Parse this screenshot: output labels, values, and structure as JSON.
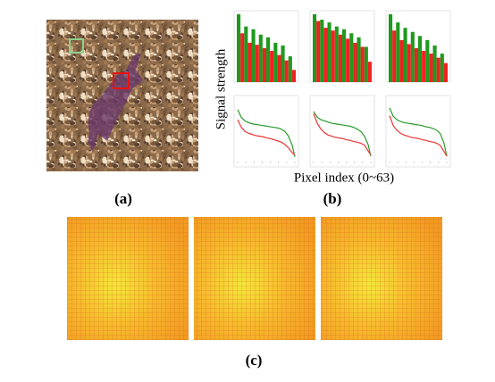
{
  "figure": {
    "labels": [
      "(a)",
      "(b)",
      "(c)"
    ],
    "y_label": "Signal strength",
    "x_label": "Pixel index (0~63)"
  },
  "chart_data": [
    {
      "type": "bar",
      "categories": [
        null,
        null,
        null,
        null,
        null,
        null,
        null,
        null
      ],
      "ylim": [
        0,
        100
      ],
      "series": [
        {
          "color": "#1f9a1f",
          "values": [
            100,
            82,
            78,
            70,
            66,
            58,
            54,
            38
          ]
        },
        {
          "color": "#ee2222",
          "values": [
            72,
            58,
            55,
            50,
            46,
            40,
            32,
            18
          ]
        }
      ]
    },
    {
      "type": "bar",
      "categories": [
        null,
        null,
        null,
        null,
        null,
        null,
        null,
        null
      ],
      "ylim": [
        0,
        100
      ],
      "series": [
        {
          "color": "#1f9a1f",
          "values": [
            100,
            92,
            88,
            82,
            78,
            72,
            66,
            52
          ]
        },
        {
          "color": "#ee2222",
          "values": [
            90,
            80,
            76,
            70,
            64,
            58,
            52,
            30
          ]
        }
      ]
    },
    {
      "type": "bar",
      "categories": [
        null,
        null,
        null,
        null,
        null,
        null,
        null,
        null
      ],
      "ylim": [
        0,
        100
      ],
      "series": [
        {
          "color": "#1f9a1f",
          "values": [
            100,
            88,
            80,
            74,
            68,
            62,
            54,
            42
          ]
        },
        {
          "color": "#ee2222",
          "values": [
            76,
            62,
            56,
            50,
            46,
            42,
            36,
            28
          ]
        }
      ]
    },
    {
      "type": "line",
      "x": [
        0,
        4,
        8,
        12,
        16,
        20,
        24,
        28,
        32,
        36,
        40,
        44,
        48,
        52,
        56,
        60,
        63
      ],
      "xlim": [
        0,
        63
      ],
      "ylim": [
        0,
        100
      ],
      "series": [
        {
          "color": "#2a9a2a",
          "values": [
            85,
            72,
            66,
            63,
            61,
            60,
            59,
            58,
            57,
            56,
            55,
            54,
            52,
            48,
            40,
            25,
            5
          ]
        },
        {
          "color": "#ee3333",
          "values": [
            68,
            55,
            48,
            45,
            43,
            41,
            40,
            39,
            37,
            36,
            34,
            32,
            30,
            26,
            20,
            12,
            8
          ]
        }
      ]
    },
    {
      "type": "line",
      "x": [
        0,
        4,
        8,
        12,
        16,
        20,
        24,
        28,
        32,
        36,
        40,
        44,
        48,
        52,
        56,
        60,
        63
      ],
      "xlim": [
        0,
        63
      ],
      "ylim": [
        0,
        100
      ],
      "series": [
        {
          "color": "#2a9a2a",
          "values": [
            82,
            72,
            68,
            66,
            64,
            62,
            61,
            60,
            59,
            58,
            57,
            55,
            52,
            48,
            40,
            26,
            6
          ]
        },
        {
          "color": "#ee3333",
          "values": [
            78,
            62,
            52,
            46,
            42,
            40,
            38,
            37,
            36,
            34,
            33,
            31,
            30,
            28,
            25,
            15,
            8
          ]
        }
      ]
    },
    {
      "type": "line",
      "x": [
        0,
        4,
        8,
        12,
        16,
        20,
        24,
        28,
        32,
        36,
        40,
        44,
        48,
        52,
        56,
        60,
        63
      ],
      "xlim": [
        0,
        63
      ],
      "ylim": [
        0,
        100
      ],
      "series": [
        {
          "color": "#2a9a2a",
          "values": [
            88,
            74,
            68,
            65,
            63,
            62,
            61,
            60,
            59,
            58,
            56,
            55,
            53,
            50,
            44,
            28,
            6
          ]
        },
        {
          "color": "#ee3333",
          "values": [
            75,
            58,
            50,
            45,
            42,
            40,
            38,
            37,
            36,
            34,
            33,
            31,
            30,
            28,
            24,
            14,
            6
          ]
        }
      ]
    }
  ]
}
